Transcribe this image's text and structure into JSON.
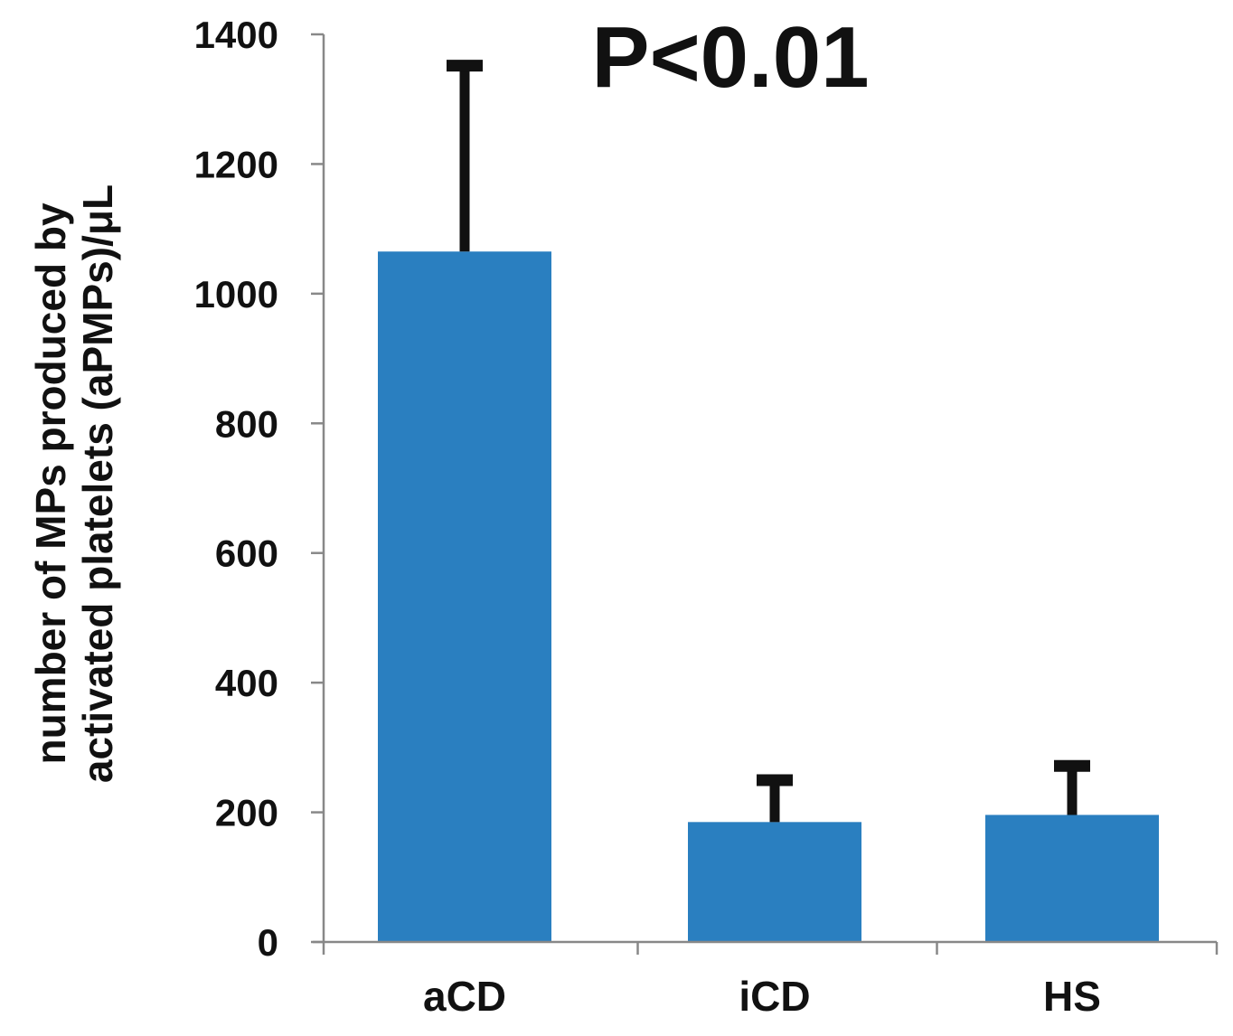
{
  "chart_data": {
    "type": "bar",
    "categories": [
      "aCD",
      "iCD",
      "HS"
    ],
    "values": [
      1065,
      185,
      196
    ],
    "error_upper": [
      1360,
      258,
      280
    ],
    "ylabel_lines": [
      "number of MPs produced by",
      "activated platelets (aPMPs)/μL"
    ],
    "annotation": "P<0.01",
    "ylim": [
      0,
      1400
    ],
    "yticks": [
      0,
      200,
      400,
      600,
      800,
      1000,
      1200,
      1400
    ],
    "grid": false,
    "colors": {
      "bar": "#2a7fc0",
      "error_bar": "#111111",
      "axis": "#888888"
    }
  }
}
